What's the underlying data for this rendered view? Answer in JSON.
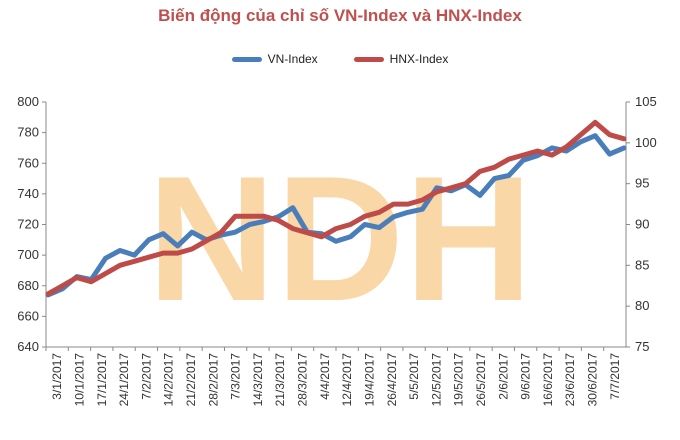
{
  "colors": {
    "title": "#c0504d",
    "vn_series": "#4a7ebb",
    "hnx_series": "#be4b48",
    "watermark": "#f8c98a",
    "axis": "#888888"
  },
  "chart_data": {
    "type": "line",
    "title": "Biến động của chỉ số VN-Index và HNX-Index",
    "legend_position": "top",
    "grid": false,
    "y_left": {
      "ticks": [
        640,
        660,
        680,
        700,
        720,
        740,
        760,
        780,
        800
      ],
      "ylim": [
        640,
        800
      ]
    },
    "y_right": {
      "ticks": [
        75,
        80,
        85,
        90,
        95,
        100,
        105
      ],
      "ylim": [
        75,
        105
      ]
    },
    "x_tick_labels": [
      "3/1/2017",
      "10/1/2017",
      "17/1/2017",
      "24/1/2017",
      "7/2/2017",
      "14/2/2017",
      "21/2/2017",
      "28/2/2017",
      "7/3/2017",
      "14/3/2017",
      "21/3/2017",
      "28/3/2017",
      "4/4/2017",
      "12/4/2017",
      "19/4/2017",
      "26/4/2017",
      "5/5/2017",
      "12/5/2017",
      "19/5/2017",
      "26/5/2017",
      "2/6/2017",
      "9/6/2017",
      "16/6/2017",
      "23/6/2017",
      "30/6/2017",
      "7/7/2017"
    ],
    "series": [
      {
        "name": "VN-Index",
        "axis": "left",
        "values": [
          674,
          678,
          686,
          684,
          698,
          703,
          700,
          710,
          714,
          706,
          715,
          710,
          713,
          715,
          720,
          722,
          725,
          731,
          715,
          714,
          709,
          712,
          720,
          718,
          725,
          728,
          730,
          744,
          742,
          746,
          739,
          750,
          752,
          762,
          765,
          770,
          768,
          774,
          778,
          766,
          770
        ]
      },
      {
        "name": "HNX-Index",
        "axis": "right",
        "values": [
          81.5,
          82.5,
          83.5,
          83.0,
          84.0,
          85.0,
          85.5,
          86.0,
          86.5,
          86.5,
          87.0,
          88.0,
          89.0,
          91.0,
          91.0,
          91.0,
          90.5,
          89.5,
          89.0,
          88.5,
          89.5,
          90.0,
          91.0,
          91.5,
          92.5,
          92.5,
          93.0,
          94.0,
          94.5,
          95.0,
          96.5,
          97.0,
          98.0,
          98.5,
          99.0,
          98.5,
          99.5,
          101.0,
          102.5,
          101.0,
          100.5
        ]
      }
    ]
  },
  "watermark_text": "NDH"
}
